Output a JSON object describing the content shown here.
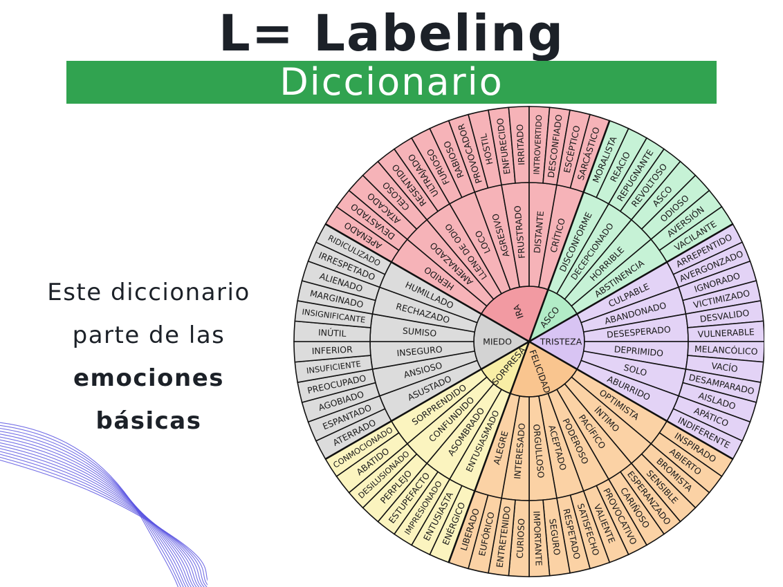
{
  "header": {
    "title": "L= Labeling",
    "subtitle": "Diccionario",
    "accent_color": "#31a350"
  },
  "side_text": {
    "line1": "Este diccionario",
    "line2": "parte de las",
    "bold1": "emociones",
    "bold2": "básicas"
  },
  "wheel": {
    "emotions": [
      {
        "name": "IRA",
        "color": "#f6b3b8",
        "center_color": "#f29aa2",
        "groups": [
          {
            "name": "HERIDO",
            "words": [
              "APENADO",
              "DEVASTADO"
            ]
          },
          {
            "name": "AMENAZADO",
            "words": [
              "ATACADO",
              "CELOSO"
            ]
          },
          {
            "name": "LLENO DE ODIO",
            "words": [
              "RESENTIDO",
              "ULTRAJADO"
            ]
          },
          {
            "name": "LOCO",
            "words": [
              "FURIOSO",
              "RABIOSO"
            ]
          },
          {
            "name": "AGRESIVO",
            "words": [
              "PROVOCADOR",
              "HOSTIL"
            ]
          },
          {
            "name": "FRUSTRADO",
            "words": [
              "ENFURECIDO",
              "IRRITADO"
            ]
          },
          {
            "name": "DISTANTE",
            "words": [
              "INTROVERTIDO",
              "DESCONFIADO"
            ]
          },
          {
            "name": "CRÍTICO",
            "words": [
              "ESCÉPTICO",
              "SARCÁSTICO"
            ]
          }
        ]
      },
      {
        "name": "ASCO",
        "color": "#c6f2d6",
        "center_color": "#b2ecc7",
        "groups": [
          {
            "name": "DISCONFORME",
            "words": [
              "MORALISTA",
              "REACIO"
            ]
          },
          {
            "name": "DECEPCIONADO",
            "words": [
              "REPUGNANTE",
              "REVOLTOSO"
            ]
          },
          {
            "name": "HORRIBLE",
            "words": [
              "ASCO",
              "ODIOSO"
            ]
          },
          {
            "name": "ABSTINENCIA",
            "words": [
              "AVERSIÓN",
              "VACILANTE"
            ]
          }
        ]
      },
      {
        "name": "TRISTEZA",
        "color": "#e3d3f6",
        "center_color": "#d8c4f3",
        "groups": [
          {
            "name": "CULPABLE",
            "words": [
              "ARREPENTIDO",
              "AVERGONZADO"
            ]
          },
          {
            "name": "ABANDONADO",
            "words": [
              "IGNORADO",
              "VICTIMIZADO"
            ]
          },
          {
            "name": "DESESPERADO",
            "words": [
              "DESVALIDO",
              "VULNERABLE"
            ]
          },
          {
            "name": "DEPRIMIDO",
            "words": [
              "MELANCÓLICO",
              "VACÍO"
            ]
          },
          {
            "name": "SOLO",
            "words": [
              "DESAMPARADO",
              "AISLADO"
            ]
          },
          {
            "name": "ABURRIDO",
            "words": [
              "APÁTICO",
              "INDIFERENTE"
            ]
          }
        ]
      },
      {
        "name": "FELICIDAD",
        "color": "#fbd2a5",
        "center_color": "#f9c58f",
        "groups": [
          {
            "name": "OPTIMISTA",
            "words": [
              "INSPIRADO",
              "ABIERTO"
            ]
          },
          {
            "name": "ÍNTIMO",
            "words": [
              "BROMISTA",
              "SENSIBLE"
            ]
          },
          {
            "name": "PACÍFICO",
            "words": [
              "ESPERANZADO",
              "CARIÑOSO"
            ]
          },
          {
            "name": "PODEROSO",
            "words": [
              "PROVOCATIVO",
              "VALIENTE"
            ]
          },
          {
            "name": "ACEPTADO",
            "words": [
              "SATISFECHO",
              "RESPETADO"
            ]
          },
          {
            "name": "ORGULLOSO",
            "words": [
              "SEGURO",
              "IMPORTANTE"
            ]
          },
          {
            "name": "INTERESADO",
            "words": [
              "CURIOSO",
              "ENTRETENIDO"
            ]
          },
          {
            "name": "ALEGRE",
            "words": [
              "EUFÓRICO",
              "LIBERADO"
            ]
          }
        ]
      },
      {
        "name": "SORPRESA",
        "color": "#fbf4bf",
        "center_color": "#f8eea5",
        "groups": [
          {
            "name": "ENTUSIASMADO",
            "words": [
              "ENÉRGICO",
              "ENTUSIASTA"
            ]
          },
          {
            "name": "ASOMBRADO",
            "words": [
              "IMPRESIONADO",
              "ESTUPEFACTO"
            ]
          },
          {
            "name": "CONFUNDIDO",
            "words": [
              "PERPLEJO",
              "DESILUSIONADO"
            ]
          },
          {
            "name": "SORPRENDIDO",
            "words": [
              "ABATIDO",
              "CONMOCIONADO"
            ]
          }
        ]
      },
      {
        "name": "MIEDO",
        "color": "#dcdcdc",
        "center_color": "#d3d3d3",
        "groups": [
          {
            "name": "ASUSTADO",
            "words": [
              "ATERRADO",
              "ESPANTADO"
            ]
          },
          {
            "name": "ANSIOSO",
            "words": [
              "AGOBIADO",
              "PREOCUPADO"
            ]
          },
          {
            "name": "INSEGURO",
            "words": [
              "INSUFICIENTE",
              "INFERIOR"
            ]
          },
          {
            "name": "SUMISO",
            "words": [
              "INÚTIL",
              "INSIGNIFICANTE"
            ]
          },
          {
            "name": "RECHAZADO",
            "words": [
              "MARGINADO",
              "ALIENADO"
            ]
          },
          {
            "name": "HUMILLADO",
            "words": [
              "IRRESPETADO",
              "RIDICULIZADO"
            ]
          }
        ]
      }
    ]
  }
}
